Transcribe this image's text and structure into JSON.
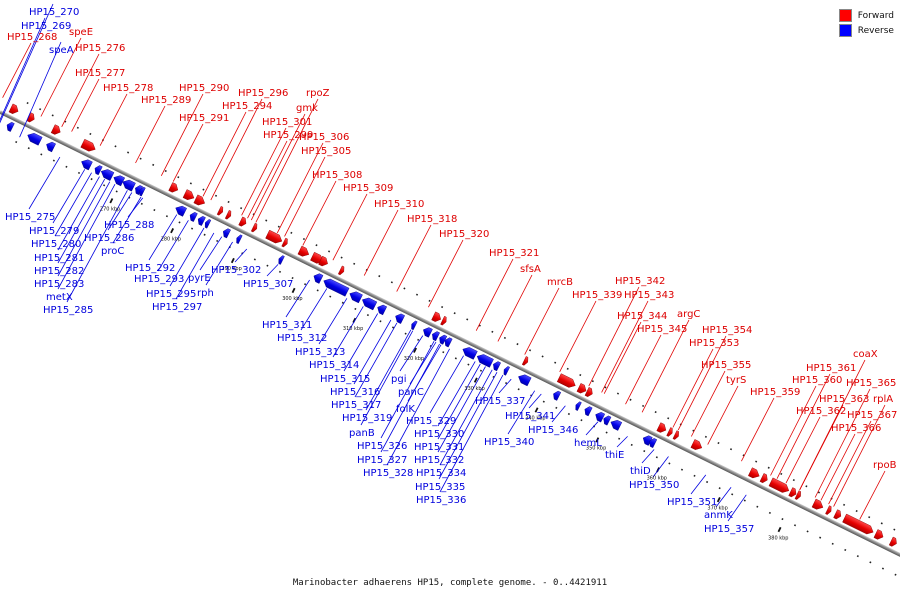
{
  "legend": {
    "forward_label": "Forward",
    "reverse_label": "Reverse",
    "forward_color": "#ff0000",
    "reverse_color": "#0000ff"
  },
  "caption": "Marinobacter adhaerens HP15, complete genome. - 0..4421911",
  "ticks": [
    "270 kbp",
    "280 kbp",
    "290 kbp",
    "300 kbp",
    "310 kbp",
    "320 kbp",
    "330 kbp",
    "340 kbp",
    "350 kbp",
    "360 kbp",
    "370 kbp",
    "380 kbp"
  ],
  "forward_labels": [
    "HP15_268",
    "speE",
    "HP15_276",
    "HP15_277",
    "HP15_278",
    "HP15_289",
    "HP15_290",
    "HP15_291",
    "HP15_296",
    "rpoZ",
    "HP15_294",
    "gmk",
    "HP15_301",
    "HP15_299",
    "HP15_306",
    "HP15_305",
    "HP15_308",
    "HP15_309",
    "HP15_310",
    "HP15_318",
    "HP15_320",
    "HP15_321",
    "sfsA",
    "mrcB",
    "HP15_339",
    "HP15_342",
    "HP15_343",
    "HP15_344",
    "HP15_345",
    "argC",
    "HP15_354",
    "HP15_353",
    "HP15_355",
    "tyrS",
    "HP15_359",
    "HP15_361",
    "coaX",
    "HP15_360",
    "HP15_365",
    "HP15_363",
    "rplA",
    "HP15_362",
    "HP15_367",
    "HP15_366",
    "rpoB"
  ],
  "reverse_labels": [
    "HP15_270",
    "HP15_269",
    "speA",
    "HP15_275",
    "HP15_279",
    "HP15_280",
    "HP15_281",
    "HP15_282",
    "HP15_283",
    "metX",
    "HP15_285",
    "HP15_288",
    "HP15_286",
    "proC",
    "HP15_292",
    "HP15_293",
    "pyrE",
    "HP15_295",
    "rph",
    "HP15_297",
    "HP15_302",
    "HP15_307",
    "HP15_311",
    "HP15_312",
    "HP15_313",
    "HP15_314",
    "HP15_315",
    "pgi",
    "HP15_316",
    "panC",
    "HP15_317",
    "folK",
    "HP15_319",
    "HP15_329",
    "panB",
    "HP15_330",
    "HP15_326",
    "HP15_331",
    "HP15_327",
    "HP15_332",
    "HP15_328",
    "HP15_334",
    "HP15_335",
    "HP15_336",
    "HP15_337",
    "HP15_341",
    "HP15_340",
    "HP15_346",
    "hemL",
    "thiE",
    "thiD",
    "HP15_350",
    "HP15_351",
    "anmK",
    "HP15_357"
  ]
}
